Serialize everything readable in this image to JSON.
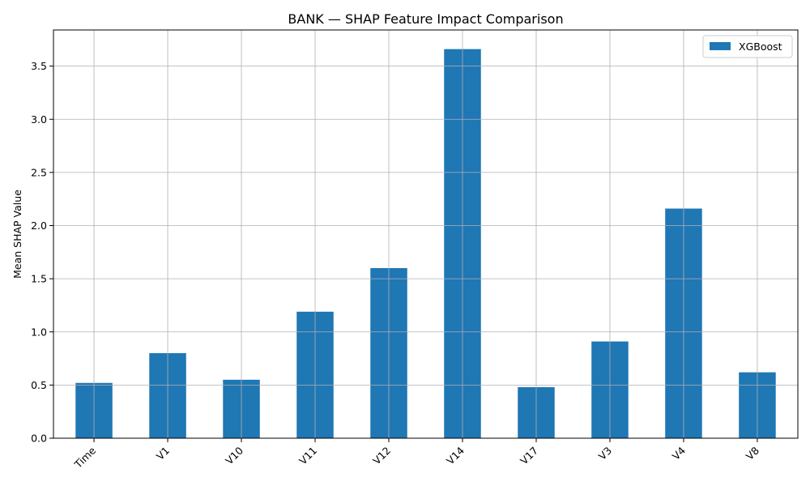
{
  "chart_data": {
    "type": "bar",
    "title": "BANK — SHAP Feature Impact Comparison",
    "xlabel": "",
    "ylabel": "Mean SHAP Value",
    "categories": [
      "Time",
      "V1",
      "V10",
      "V11",
      "V12",
      "V14",
      "V17",
      "V3",
      "V4",
      "V8"
    ],
    "series": [
      {
        "name": "XGBoost",
        "color": "#1f77b4",
        "values": [
          0.52,
          0.8,
          0.55,
          1.19,
          1.6,
          3.66,
          0.48,
          0.91,
          2.16,
          0.62
        ]
      }
    ],
    "ylim": [
      0,
      3.84
    ],
    "yticks": [
      0.0,
      0.5,
      1.0,
      1.5,
      2.0,
      2.5,
      3.0,
      3.5
    ],
    "ytick_labels": [
      "0.0",
      "0.5",
      "1.0",
      "1.5",
      "2.0",
      "2.5",
      "3.0",
      "3.5"
    ],
    "grid": true,
    "legend_position": "top-right",
    "x_tick_rotation": "45°"
  }
}
